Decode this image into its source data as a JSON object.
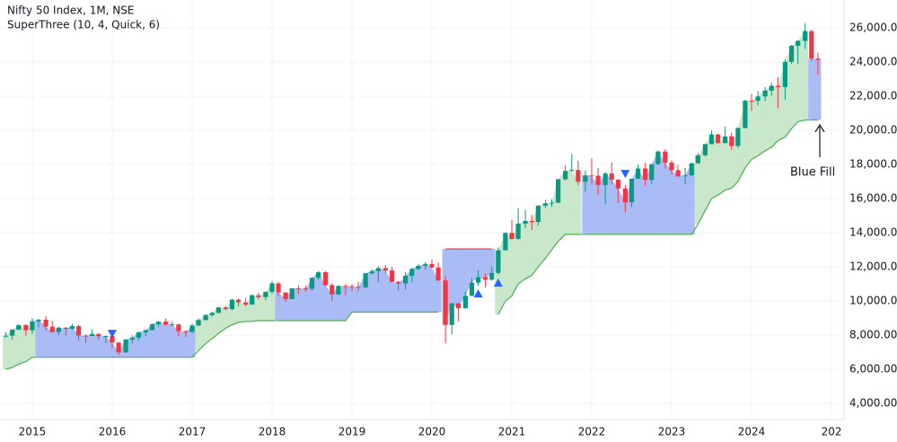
{
  "chart_data": {
    "type": "candlestick",
    "title": "Nifty 50 Index, 1M, NSE",
    "subtitle": "SuperThree (10, 4, Quick, 6)",
    "annotation": "Blue Fill",
    "up_color": "#089981",
    "down_color": "#f23645",
    "signal_color": "#2962ff",
    "xlim": [
      2014.596,
      2025.157
    ],
    "ylim": [
      3053,
      27632
    ],
    "xticks": [
      2015,
      2016,
      2017,
      2018,
      2019,
      2020,
      2021,
      2022,
      2023,
      2024,
      {
        "value": 2025,
        "label": "202"
      }
    ],
    "yticks": [
      {
        "value": 4000,
        "label": "4,000.00"
      },
      {
        "value": 6000,
        "label": "6,000.00"
      },
      {
        "value": 8000,
        "label": "8,000.00"
      },
      {
        "value": 10000,
        "label": "10,000.00"
      },
      {
        "value": 12000,
        "label": "12,000.00"
      },
      {
        "value": 14000,
        "label": "14,000.00"
      },
      {
        "value": 16000,
        "label": "16,000.00"
      },
      {
        "value": 18000,
        "label": "18,000.00"
      },
      {
        "value": 20000,
        "label": "20,000.00"
      },
      {
        "value": 22000,
        "label": "22,000.00"
      },
      {
        "value": 24000,
        "label": "24,000.00"
      },
      {
        "value": 26000,
        "label": "26,000.00"
      }
    ],
    "grid": true,
    "x": [
      2014.67,
      2014.75,
      2014.83,
      2014.92,
      2015,
      2015.08,
      2015.17,
      2015.25,
      2015.33,
      2015.42,
      2015.5,
      2015.58,
      2015.67,
      2015.75,
      2015.83,
      2015.92,
      2016,
      2016.08,
      2016.17,
      2016.25,
      2016.33,
      2016.42,
      2016.5,
      2016.58,
      2016.67,
      2016.75,
      2016.83,
      2016.92,
      2017,
      2017.08,
      2017.17,
      2017.25,
      2017.33,
      2017.42,
      2017.5,
      2017.58,
      2017.67,
      2017.75,
      2017.83,
      2017.92,
      2018,
      2018.08,
      2018.17,
      2018.25,
      2018.33,
      2018.42,
      2018.5,
      2018.58,
      2018.67,
      2018.75,
      2018.83,
      2018.92,
      2019,
      2019.08,
      2019.17,
      2019.25,
      2019.33,
      2019.42,
      2019.5,
      2019.58,
      2019.67,
      2019.75,
      2019.83,
      2019.92,
      2020,
      2020.08,
      2020.17,
      2020.25,
      2020.33,
      2020.42,
      2020.5,
      2020.58,
      2020.67,
      2020.75,
      2020.83,
      2020.92,
      2021,
      2021.08,
      2021.17,
      2021.25,
      2021.33,
      2021.42,
      2021.5,
      2021.58,
      2021.67,
      2021.75,
      2021.83,
      2021.92,
      2022,
      2022.08,
      2022.17,
      2022.25,
      2022.33,
      2022.42,
      2022.5,
      2022.58,
      2022.67,
      2022.75,
      2022.83,
      2022.92,
      2023,
      2023.08,
      2023.17,
      2023.25,
      2023.33,
      2023.42,
      2023.5,
      2023.58,
      2023.67,
      2023.75,
      2023.83,
      2023.92,
      2024,
      2024.08,
      2024.17,
      2024.25,
      2024.33,
      2024.42,
      2024.5,
      2024.58,
      2024.67,
      2024.75,
      2024.83
    ],
    "candles": [
      [
        7950,
        8180,
        7840,
        7965
      ],
      [
        7965,
        8330,
        7720,
        8322
      ],
      [
        8322,
        8617,
        8290,
        8588
      ],
      [
        8588,
        8627,
        7961,
        8283
      ],
      [
        8283,
        8997,
        8065,
        8809
      ],
      [
        8809,
        8941,
        8470,
        8902
      ],
      [
        8902,
        9119,
        8269,
        8491
      ],
      [
        8491,
        8845,
        8145,
        8182
      ],
      [
        8182,
        8490,
        7997,
        8434
      ],
      [
        8434,
        8467,
        7940,
        8368
      ],
      [
        8368,
        8655,
        8316,
        8533
      ],
      [
        8533,
        8622,
        7668,
        7971
      ],
      [
        7971,
        8055,
        7540,
        7949
      ],
      [
        7949,
        8336,
        7931,
        8066
      ],
      [
        8066,
        8117,
        7715,
        7935
      ],
      [
        7935,
        7979,
        7552,
        7946
      ],
      [
        7946,
        7973,
        7241,
        7564
      ],
      [
        7564,
        7600,
        6826,
        6987
      ],
      [
        6987,
        7778,
        6960,
        7738
      ],
      [
        7738,
        7992,
        7517,
        7850
      ],
      [
        7850,
        8213,
        7678,
        8160
      ],
      [
        8160,
        8308,
        7928,
        8288
      ],
      [
        8288,
        8674,
        8287,
        8639
      ],
      [
        8639,
        8819,
        8518,
        8786
      ],
      [
        8786,
        8968,
        8555,
        8611
      ],
      [
        8611,
        8806,
        8506,
        8626
      ],
      [
        8626,
        8669,
        7916,
        8224
      ],
      [
        8224,
        8274,
        7893,
        8186
      ],
      [
        8186,
        8672,
        8133,
        8561
      ],
      [
        8561,
        8982,
        8537,
        8880
      ],
      [
        8880,
        9218,
        8860,
        9174
      ],
      [
        9174,
        9367,
        9075,
        9304
      ],
      [
        9304,
        9650,
        9270,
        9621
      ],
      [
        9621,
        9709,
        9448,
        9521
      ],
      [
        9521,
        10115,
        9448,
        10077
      ],
      [
        10077,
        10138,
        9685,
        9918
      ],
      [
        9918,
        10179,
        9687,
        9789
      ],
      [
        9789,
        10384,
        9780,
        10335
      ],
      [
        10335,
        10490,
        10094,
        10227
      ],
      [
        10227,
        10552,
        10033,
        10531
      ],
      [
        10531,
        11172,
        10404,
        11028
      ],
      [
        11028,
        11118,
        10276,
        10493
      ],
      [
        10493,
        10525,
        9952,
        10114
      ],
      [
        10114,
        10759,
        10112,
        10739
      ],
      [
        10739,
        10930,
        10418,
        10736
      ],
      [
        10736,
        10893,
        10550,
        10714
      ],
      [
        10714,
        11367,
        10605,
        11357
      ],
      [
        11357,
        11760,
        11234,
        11681
      ],
      [
        11681,
        11751,
        10866,
        10930
      ],
      [
        10930,
        11035,
        10005,
        10387
      ],
      [
        10387,
        10922,
        10342,
        10877
      ],
      [
        10877,
        10985,
        10334,
        10863
      ],
      [
        10863,
        10987,
        10584,
        10831
      ],
      [
        10831,
        11118,
        10585,
        10793
      ],
      [
        10793,
        11630,
        10790,
        11624
      ],
      [
        11624,
        11857,
        11549,
        11748
      ],
      [
        11748,
        12041,
        11108,
        11923
      ],
      [
        11923,
        12103,
        11625,
        11789
      ],
      [
        11789,
        11982,
        11107,
        11118
      ],
      [
        11118,
        11182,
        10637,
        11023
      ],
      [
        11023,
        11695,
        10670,
        11474
      ],
      [
        11474,
        11946,
        11090,
        11877
      ],
      [
        11877,
        12159,
        11802,
        12056
      ],
      [
        12056,
        12294,
        11833,
        12168
      ],
      [
        12168,
        12430,
        11930,
        11962
      ],
      [
        11962,
        12247,
        11175,
        11202
      ],
      [
        11202,
        11433,
        7511,
        8598
      ],
      [
        8598,
        9890,
        8055,
        9860
      ],
      [
        9860,
        9889,
        8807,
        9580
      ],
      [
        9580,
        10554,
        9544,
        10302
      ],
      [
        10302,
        11341,
        10300,
        11073
      ],
      [
        11073,
        11794,
        10882,
        11388
      ],
      [
        11388,
        11619,
        10791,
        11248
      ],
      [
        11248,
        12025,
        11185,
        11642
      ],
      [
        11642,
        13146,
        11557,
        12969
      ],
      [
        12969,
        14025,
        12962,
        13982
      ],
      [
        13982,
        14754,
        13597,
        13635
      ],
      [
        13635,
        15432,
        13597,
        14529
      ],
      [
        14529,
        15337,
        14264,
        14691
      ],
      [
        14691,
        15044,
        14151,
        14631
      ],
      [
        14631,
        15606,
        14417,
        15583
      ],
      [
        15583,
        15916,
        15451,
        15722
      ],
      [
        15722,
        15962,
        15514,
        15763
      ],
      [
        15763,
        17154,
        15735,
        17132
      ],
      [
        17132,
        17948,
        17055,
        17618
      ],
      [
        17618,
        18604,
        17613,
        17672
      ],
      [
        17672,
        18210,
        16782,
        16983
      ],
      [
        16983,
        17640,
        16410,
        17354
      ],
      [
        17354,
        18351,
        16837,
        17340
      ],
      [
        17340,
        17794,
        16203,
        16794
      ],
      [
        16794,
        17559,
        15671,
        17465
      ],
      [
        17465,
        18115,
        16825,
        17103
      ],
      [
        17103,
        17133,
        15735,
        16585
      ],
      [
        16585,
        16794,
        15183,
        15780
      ],
      [
        15780,
        17172,
        15511,
        17158
      ],
      [
        17158,
        17992,
        17154,
        17759
      ],
      [
        17759,
        18096,
        16748,
        17094
      ],
      [
        17094,
        18022,
        16855,
        18012
      ],
      [
        18012,
        18816,
        17959,
        18758
      ],
      [
        18758,
        18888,
        17774,
        18105
      ],
      [
        18105,
        18251,
        17405,
        17662
      ],
      [
        17662,
        17972,
        17255,
        17304
      ],
      [
        17304,
        17799,
        16828,
        17360
      ],
      [
        17360,
        18089,
        17312,
        18065
      ],
      [
        18065,
        18662,
        18042,
        18534
      ],
      [
        18534,
        19201,
        18464,
        19189
      ],
      [
        19189,
        19991,
        19180,
        19754
      ],
      [
        19754,
        19795,
        19224,
        19254
      ],
      [
        19254,
        20222,
        19223,
        19638
      ],
      [
        19638,
        19849,
        18838,
        19080
      ],
      [
        19080,
        20158,
        18974,
        20133
      ],
      [
        20133,
        21801,
        20104,
        21731
      ],
      [
        21731,
        22124,
        21137,
        21726
      ],
      [
        21726,
        22297,
        21448,
        21983
      ],
      [
        21983,
        22527,
        21710,
        22327
      ],
      [
        22327,
        22795,
        22007,
        22605
      ],
      [
        22605,
        23111,
        21281,
        22531
      ],
      [
        22531,
        24174,
        21791,
        24011
      ],
      [
        24011,
        24999,
        23893,
        24951
      ],
      [
        24951,
        25268,
        23894,
        25236
      ],
      [
        25236,
        26278,
        24754,
        25811
      ],
      [
        25811,
        25907,
        24073,
        24205
      ],
      [
        24205,
        24538,
        23263,
        24131
      ]
    ],
    "stop": [
      6000,
      6100,
      6300,
      6450,
      6700,
      6700,
      6700,
      6700,
      6700,
      6700,
      6700,
      6700,
      6700,
      6700,
      6700,
      6700,
      6700,
      6700,
      6700,
      6700,
      6700,
      6700,
      6700,
      6700,
      6700,
      6700,
      6700,
      6700,
      6700,
      7100,
      7500,
      7800,
      8100,
      8400,
      8600,
      8750,
      8800,
      8800,
      8850,
      8850,
      8850,
      8850,
      8850,
      8850,
      8850,
      8850,
      8850,
      8850,
      8850,
      8850,
      8850,
      8850,
      9350,
      9350,
      9350,
      9350,
      9350,
      9350,
      9350,
      9350,
      9350,
      9350,
      9350,
      9350,
      9350,
      9350,
      13050,
      13050,
      13050,
      13050,
      13050,
      13050,
      13050,
      13050,
      9200,
      10000,
      10300,
      11000,
      11300,
      11500,
      12000,
      12500,
      13000,
      13500,
      13900,
      13900,
      13900,
      13900,
      13900,
      13900,
      13900,
      13900,
      13900,
      13900,
      13900,
      13900,
      13900,
      13900,
      13900,
      13900,
      13900,
      13900,
      13900,
      13900,
      14500,
      15300,
      16000,
      16200,
      16500,
      16600,
      17000,
      17800,
      18300,
      18500,
      18800,
      19000,
      19400,
      19600,
      20100,
      20500,
      20600,
      20600,
      20600
    ],
    "segments": [
      {
        "from": 2014.67,
        "fill": "#c9e7cb",
        "line": "#4caf50"
      },
      {
        "from": 2015.08,
        "fill": "#a9bcf5",
        "line": "#4caf50"
      },
      {
        "from": 2017.08,
        "fill": "#c9e7cb",
        "line": "#4caf50"
      },
      {
        "from": 2018.08,
        "fill": "#a9bcf5",
        "line": "#4caf50"
      },
      {
        "from": 2020.17,
        "fill": "#a9bcf5",
        "line": "#f23645"
      },
      {
        "from": 2020.83,
        "fill": "#c9e7cb",
        "line": "#4caf50"
      },
      {
        "from": 2021.92,
        "fill": "#a9bcf5",
        "line": "#4caf50"
      },
      {
        "from": 2023.33,
        "fill": "#c9e7cb",
        "line": "#4caf50"
      },
      {
        "from": 2024.75,
        "fill": "#a9bcf5",
        "line": "#4caf50"
      }
    ],
    "signals": [
      {
        "x": 2016,
        "y": 8100,
        "dir": "down"
      },
      {
        "x": 2022.42,
        "y": 17470,
        "dir": "down"
      },
      {
        "x": 2020.58,
        "y": 10420,
        "dir": "up"
      },
      {
        "x": 2020.83,
        "y": 11050,
        "dir": "up"
      }
    ]
  }
}
